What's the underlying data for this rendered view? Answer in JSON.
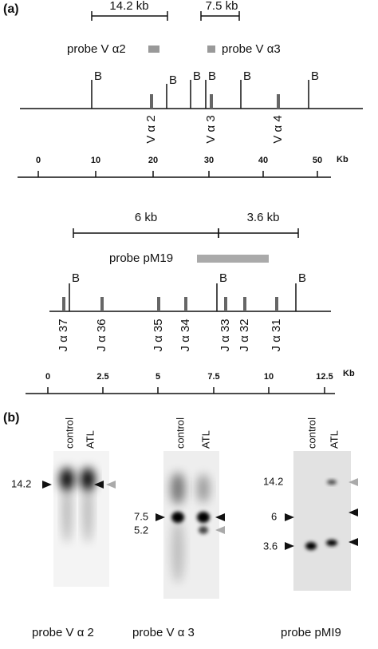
{
  "panel_a": {
    "label": "(a)",
    "map1": {
      "brackets": [
        "14.2 kb",
        "7.5 kb"
      ],
      "probes": [
        "probe V α2",
        "probe V α3"
      ],
      "sites": [
        "B",
        "B",
        "B",
        "B",
        "B",
        "B"
      ],
      "genes": [
        "V α 2",
        "V α 3",
        "V α 4"
      ],
      "scale": {
        "ticks": [
          "0",
          "10",
          "20",
          "30",
          "40",
          "50"
        ],
        "unit": "Kb"
      }
    },
    "map2": {
      "brackets": [
        "6 kb",
        "3.6 kb"
      ],
      "probe": "probe pM19",
      "sites": [
        "B",
        "B",
        "B"
      ],
      "genes": [
        "J α 37",
        "J α 36",
        "J α 35",
        "J α 34",
        "J α 33",
        "J α 32",
        "J α 31"
      ],
      "scale": {
        "ticks": [
          "0",
          "2.5",
          "5",
          "7.5",
          "10",
          "12.5"
        ],
        "unit": "Kb"
      }
    }
  },
  "panel_b": {
    "label": "(b)",
    "blots": [
      {
        "lanes": [
          "control",
          "ATL"
        ],
        "sizes": [
          "14.2"
        ],
        "caption": "probe V α 2"
      },
      {
        "lanes": [
          "control",
          "ATL"
        ],
        "sizes": [
          "7.5",
          "5.2"
        ],
        "caption": "probe V α 3"
      },
      {
        "lanes": [
          "control",
          "ATL"
        ],
        "sizes": [
          "14.2",
          "6",
          "3.6"
        ],
        "caption": "probe pMI9"
      }
    ]
  }
}
